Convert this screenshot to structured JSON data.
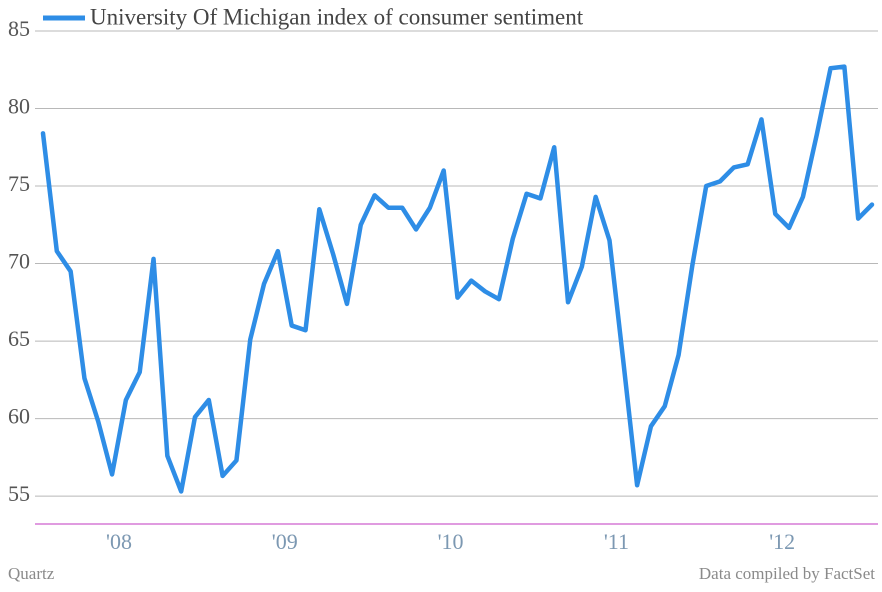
{
  "chart_data": {
    "type": "line",
    "legend": "top-left",
    "grid": true,
    "categories": [
      null,
      null,
      null,
      null,
      null,
      null,
      "'08",
      null,
      null,
      null,
      null,
      null,
      null,
      null,
      null,
      null,
      null,
      null,
      "'09",
      null,
      null,
      null,
      null,
      null,
      null,
      null,
      null,
      null,
      null,
      null,
      "'10",
      null,
      null,
      null,
      null,
      null,
      null,
      null,
      null,
      null,
      null,
      null,
      "'11",
      null,
      null,
      null,
      null,
      null,
      null,
      null,
      null,
      null,
      null,
      null,
      "'12",
      null,
      null,
      null,
      null,
      null,
      null
    ],
    "series": [
      {
        "name": "University Of Michigan index of consumer sentiment",
        "color": "#2e8de6",
        "values": [
          78.4,
          70.8,
          69.5,
          62.6,
          59.8,
          56.4,
          61.2,
          63.0,
          70.3,
          57.6,
          55.3,
          60.1,
          61.2,
          56.3,
          57.3,
          65.1,
          68.7,
          70.8,
          66.0,
          65.7,
          73.5,
          70.6,
          67.4,
          72.5,
          74.4,
          73.6,
          73.6,
          72.2,
          73.6,
          76.0,
          67.8,
          68.9,
          68.2,
          67.7,
          71.6,
          74.5,
          74.2,
          77.5,
          67.5,
          69.8,
          74.3,
          71.5,
          63.7,
          55.7,
          59.5,
          60.8,
          64.1,
          69.9,
          75.0,
          75.3,
          76.2,
          76.4,
          79.3,
          73.2,
          72.3,
          74.3,
          78.3,
          82.6,
          82.7,
          72.9,
          73.8
        ]
      }
    ],
    "ylim": [
      53.2,
      85
    ],
    "yticks": [
      55,
      60,
      65,
      70,
      75,
      80,
      85
    ],
    "source_left": "Quartz",
    "source_right": "Data compiled by FactSet"
  }
}
